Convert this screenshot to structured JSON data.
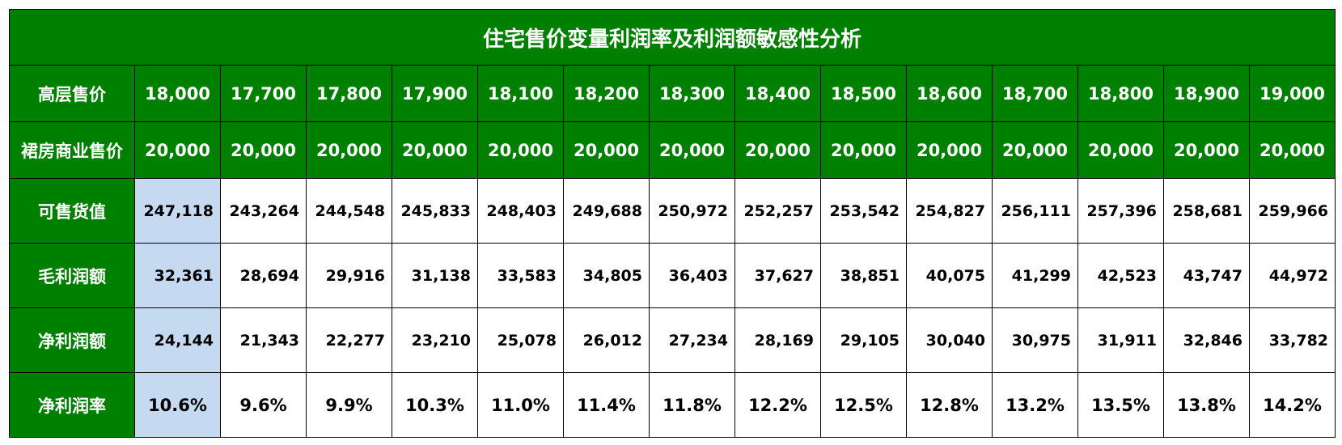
{
  "table": {
    "title": "住宅售价变量利润率及利润额敏感性分析",
    "rows": [
      {
        "label": "高层售价",
        "values": [
          "18,000",
          "17,700",
          "17,800",
          "17,900",
          "18,100",
          "18,200",
          "18,300",
          "18,400",
          "18,500",
          "18,600",
          "18,700",
          "18,800",
          "18,900",
          "19,000"
        ]
      },
      {
        "label": "裙房商业售价",
        "values": [
          "20,000",
          "20,000",
          "20,000",
          "20,000",
          "20,000",
          "20,000",
          "20,000",
          "20,000",
          "20,000",
          "20,000",
          "20,000",
          "20,000",
          "20,000",
          "20,000"
        ]
      },
      {
        "label": "可售货值",
        "values": [
          "247,118",
          "243,264",
          "244,548",
          "245,833",
          "248,403",
          "249,688",
          "250,972",
          "252,257",
          "253,542",
          "254,827",
          "256,111",
          "257,396",
          "258,681",
          "259,966"
        ]
      },
      {
        "label": "毛利润额",
        "values": [
          "32,361",
          "28,694",
          "29,916",
          "31,138",
          "33,583",
          "34,805",
          "36,403",
          "37,627",
          "38,851",
          "40,075",
          "41,299",
          "42,523",
          "43,747",
          "44,972"
        ]
      },
      {
        "label": "净利润额",
        "values": [
          "24,144",
          "21,343",
          "22,277",
          "23,210",
          "25,078",
          "26,012",
          "27,234",
          "28,169",
          "29,105",
          "30,040",
          "30,975",
          "31,911",
          "32,846",
          "33,782"
        ]
      },
      {
        "label": "净利润率",
        "values": [
          "10.6%",
          "9.6%",
          "9.9%",
          "10.3%",
          "11.0%",
          "11.4%",
          "11.8%",
          "12.2%",
          "12.5%",
          "12.8%",
          "13.2%",
          "13.5%",
          "13.8%",
          "14.2%"
        ]
      }
    ]
  }
}
